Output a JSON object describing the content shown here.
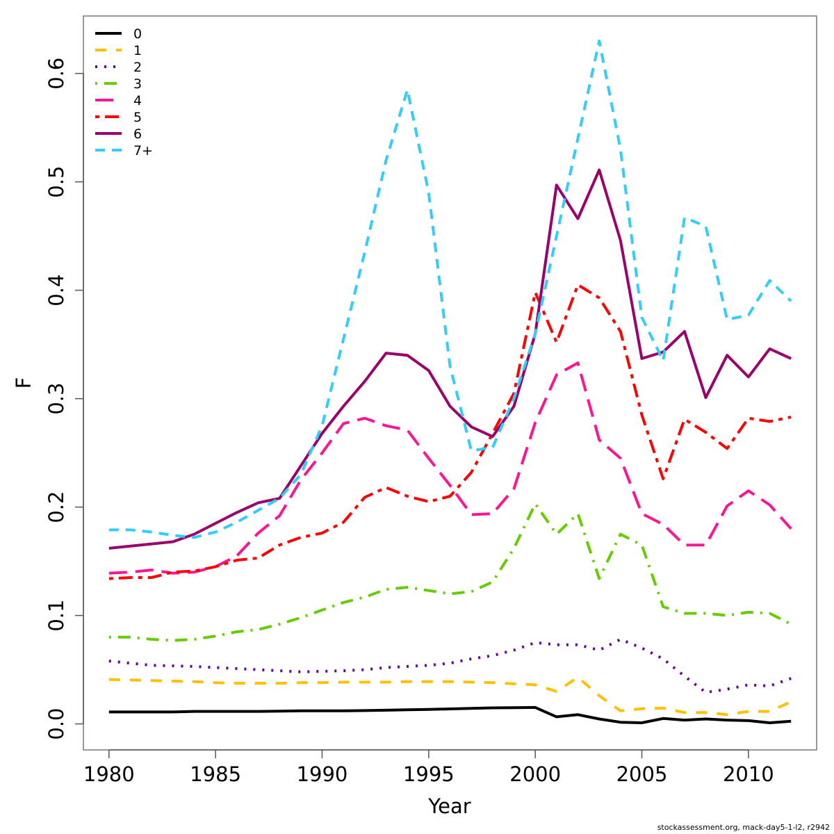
{
  "chart_data": {
    "type": "line",
    "title": "",
    "xlabel": "Year",
    "ylabel": "F",
    "xlim": [
      1978.8,
      2013.2
    ],
    "ylim": [
      -0.024,
      0.653
    ],
    "grid": false,
    "legend_position": "top-left",
    "x_ticks": [
      1980,
      1985,
      1990,
      1995,
      2000,
      2005,
      2010
    ],
    "x_tick_labels": [
      "1980",
      "1985",
      "1990",
      "1995",
      "2000",
      "2005",
      "2010"
    ],
    "y_ticks": [
      0.0,
      0.1,
      0.2,
      0.3,
      0.4,
      0.5,
      0.6
    ],
    "y_tick_labels": [
      "0.0",
      "0.1",
      "0.2",
      "0.3",
      "0.4",
      "0.5",
      "0.6"
    ],
    "x": [
      1980,
      1981,
      1982,
      1983,
      1984,
      1985,
      1986,
      1987,
      1988,
      1989,
      1990,
      1991,
      1992,
      1993,
      1994,
      1995,
      1996,
      1997,
      1998,
      1999,
      2000,
      2001,
      2002,
      2003,
      2004,
      2005,
      2006,
      2007,
      2008,
      2009,
      2010,
      2011,
      2012
    ],
    "series": [
      {
        "name": "0",
        "color": "#000000",
        "dash": "solid",
        "values": [
          0.011,
          0.011,
          0.011,
          0.011,
          0.0115,
          0.0115,
          0.0115,
          0.0115,
          0.0118,
          0.012,
          0.012,
          0.012,
          0.0123,
          0.0126,
          0.013,
          0.0133,
          0.0138,
          0.0143,
          0.0148,
          0.015,
          0.0152,
          0.0065,
          0.0085,
          0.0045,
          0.0015,
          0.001,
          0.005,
          0.0035,
          0.0045,
          0.0035,
          0.003,
          0.001,
          0.0025
        ]
      },
      {
        "name": "1",
        "color": "#FFC000",
        "dash": "dash-long-gap",
        "values": [
          0.041,
          0.0405,
          0.04,
          0.0395,
          0.039,
          0.038,
          0.0375,
          0.0375,
          0.0375,
          0.038,
          0.038,
          0.0385,
          0.0385,
          0.0385,
          0.039,
          0.039,
          0.039,
          0.0385,
          0.038,
          0.037,
          0.036,
          0.03,
          0.043,
          0.026,
          0.012,
          0.014,
          0.0145,
          0.0105,
          0.0105,
          0.0085,
          0.0115,
          0.0115,
          0.0205
        ]
      },
      {
        "name": "2",
        "color": "#660099",
        "dash": "dotted",
        "values": [
          0.058,
          0.056,
          0.054,
          0.0535,
          0.053,
          0.052,
          0.051,
          0.05,
          0.049,
          0.048,
          0.0485,
          0.049,
          0.05,
          0.052,
          0.053,
          0.054,
          0.056,
          0.06,
          0.063,
          0.068,
          0.075,
          0.073,
          0.073,
          0.068,
          0.078,
          0.07,
          0.06,
          0.044,
          0.029,
          0.032,
          0.036,
          0.035,
          0.042
        ]
      },
      {
        "name": "3",
        "color": "#66CC00",
        "dash": "dash-dot",
        "values": [
          0.08,
          0.08,
          0.078,
          0.077,
          0.078,
          0.081,
          0.085,
          0.087,
          0.092,
          0.098,
          0.105,
          0.112,
          0.117,
          0.124,
          0.126,
          0.123,
          0.12,
          0.122,
          0.131,
          0.162,
          0.203,
          0.175,
          0.194,
          0.134,
          0.175,
          0.165,
          0.108,
          0.102,
          0.102,
          0.1,
          0.103,
          0.102,
          0.092
        ]
      },
      {
        "name": "4",
        "color": "#FF1493",
        "dash": "long-dash",
        "values": [
          0.139,
          0.14,
          0.142,
          0.139,
          0.14,
          0.145,
          0.155,
          0.176,
          0.192,
          0.225,
          0.25,
          0.277,
          0.282,
          0.275,
          0.271,
          0.245,
          0.22,
          0.193,
          0.194,
          0.217,
          0.278,
          0.322,
          0.333,
          0.262,
          0.245,
          0.194,
          0.184,
          0.165,
          0.165,
          0.201,
          0.215,
          0.202,
          0.18
        ]
      },
      {
        "name": "5",
        "color": "#FF0000",
        "dash": "dash-dot-long",
        "values": [
          0.134,
          0.135,
          0.135,
          0.14,
          0.141,
          0.145,
          0.151,
          0.153,
          0.165,
          0.172,
          0.176,
          0.186,
          0.209,
          0.218,
          0.21,
          0.205,
          0.21,
          0.232,
          0.268,
          0.305,
          0.398,
          0.352,
          0.405,
          0.393,
          0.362,
          0.285,
          0.226,
          0.281,
          0.269,
          0.254,
          0.282,
          0.279,
          0.283
        ]
      },
      {
        "name": "6",
        "color": "#99006B",
        "dash": "solid",
        "values": [
          0.162,
          0.164,
          0.166,
          0.168,
          0.175,
          0.185,
          0.195,
          0.204,
          0.208,
          0.238,
          0.268,
          0.293,
          0.316,
          0.342,
          0.34,
          0.326,
          0.293,
          0.274,
          0.265,
          0.293,
          0.36,
          0.497,
          0.466,
          0.511,
          0.446,
          0.337,
          0.343,
          0.362,
          0.301,
          0.34,
          0.32,
          0.346,
          0.337
        ]
      },
      {
        "name": "7+",
        "color": "#33CCFF",
        "dash": "dashed",
        "values": [
          0.179,
          0.179,
          0.177,
          0.174,
          0.172,
          0.177,
          0.186,
          0.197,
          0.208,
          0.23,
          0.275,
          0.355,
          0.435,
          0.52,
          0.585,
          0.49,
          0.33,
          0.252,
          0.255,
          0.3,
          0.36,
          0.45,
          0.54,
          0.63,
          0.53,
          0.375,
          0.335,
          0.467,
          0.459,
          0.373,
          0.377,
          0.409,
          0.39
        ]
      }
    ]
  },
  "footnote": "stockassessment.org, mack-day5-1-l2, r2942"
}
